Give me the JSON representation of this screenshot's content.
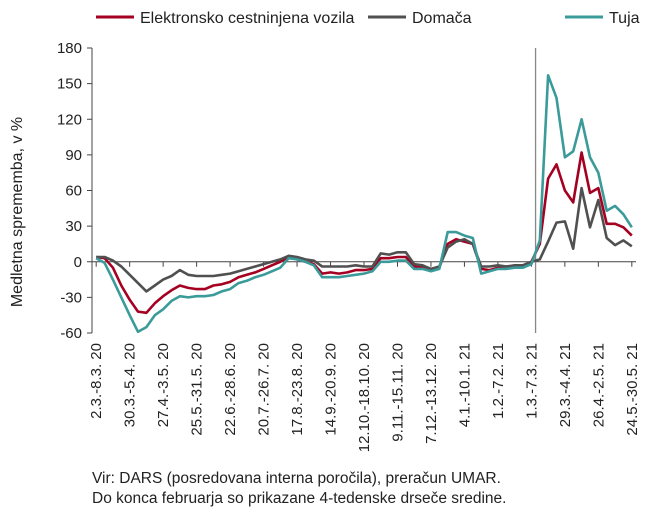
{
  "chart_data": {
    "type": "line",
    "ylabel": "Medletna sprememba, v %",
    "ylim": [
      -60,
      180
    ],
    "yticks": [
      -60,
      -30,
      0,
      30,
      60,
      90,
      120,
      150,
      180
    ],
    "grid": false,
    "legend_position": "top",
    "vline_after_category": "1.3.-7.3. 21",
    "x_tick_labels": [
      "2.3.-8.3. 20",
      "30.3.-5.4. 20",
      "27.4.-3.5. 20",
      "25.5.-31.5. 20",
      "22.6.-28.6. 20",
      "20.7.-26.7. 20",
      "17.8.-23.8. 20",
      "14.9.-20.9. 20",
      "12.10.-18.10. 20",
      "9.11.-15.11. 20",
      "7.12.-13.12. 20",
      "4.1.-10.1. 21",
      "1.2.-7.2. 21",
      "1.3.-7.3. 21",
      "29.3.-4.4. 21",
      "26.4.-2.5. 21",
      "24.5.-30.5. 21"
    ],
    "x_tick_index": [
      0,
      4,
      8,
      12,
      16,
      20,
      24,
      28,
      32,
      36,
      40,
      44,
      48,
      52,
      56,
      60,
      64
    ],
    "series": [
      {
        "name": "Elektronsko cestninjena vozila",
        "color": "#a50021",
        "values": [
          4,
          3,
          -5,
          -20,
          -32,
          -42,
          -43,
          -35,
          -29,
          -24,
          -20,
          -22,
          -23,
          -23,
          -20,
          -19,
          -17,
          -13,
          -11,
          -9,
          -6,
          -3,
          0,
          4,
          2,
          0,
          -2,
          -10,
          -9,
          -10,
          -9,
          -7,
          -7,
          -6,
          3,
          3,
          4,
          4,
          -4,
          -5,
          -7,
          -5,
          15,
          19,
          17,
          15,
          -6,
          -7,
          -5,
          -4,
          -4,
          -3,
          0,
          15,
          70,
          82,
          60,
          50,
          92,
          58,
          62,
          32,
          32,
          29,
          22
        ]
      },
      {
        "name": "Domača",
        "color": "#505050",
        "values": [
          4,
          4,
          1,
          -4,
          -11,
          -18,
          -25,
          -20,
          -15,
          -12,
          -7,
          -11,
          -12,
          -12,
          -12,
          -11,
          -10,
          -8,
          -6,
          -4,
          -2,
          0,
          2,
          5,
          4,
          2,
          1,
          -4,
          -4,
          -4,
          -4,
          -3,
          -4,
          -4,
          7,
          6,
          8,
          8,
          -2,
          -3,
          -6,
          -4,
          12,
          17,
          19,
          15,
          -4,
          -4,
          -3,
          -4,
          -3,
          -3,
          0,
          2,
          17,
          33,
          34,
          11,
          62,
          29,
          52,
          20,
          14,
          18,
          13
        ]
      },
      {
        "name": "Tuja",
        "color": "#3a9b9a",
        "values": [
          3,
          -1,
          -15,
          -30,
          -45,
          -59,
          -55,
          -45,
          -40,
          -33,
          -29,
          -30,
          -29,
          -29,
          -28,
          -25,
          -23,
          -18,
          -16,
          -13,
          -11,
          -8,
          -5,
          3,
          2,
          0,
          -3,
          -13,
          -13,
          -13,
          -12,
          -11,
          -10,
          -8,
          0,
          0,
          1,
          1,
          -6,
          -6,
          -8,
          -6,
          25,
          25,
          22,
          20,
          -10,
          -8,
          -6,
          -6,
          -5,
          -5,
          -2,
          18,
          157,
          138,
          88,
          93,
          120,
          88,
          75,
          43,
          47,
          40,
          29
        ]
      }
    ]
  },
  "footnote": {
    "line1": "Vir: DARS (posredovana interna poročila), preračun UMAR.",
    "line2": "Do konca februarja so prikazane 4-tedenske drseče sredine."
  }
}
